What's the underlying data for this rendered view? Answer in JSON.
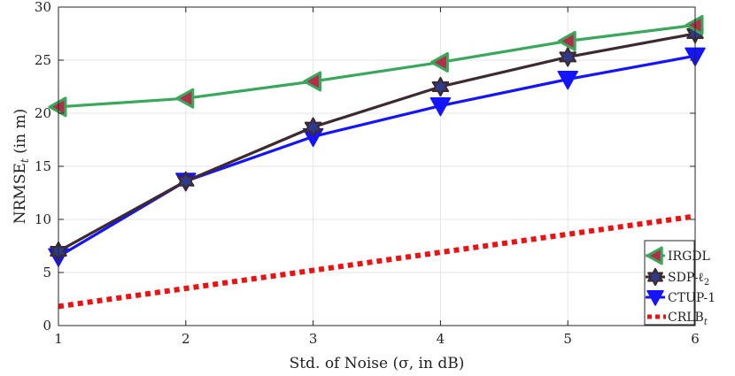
{
  "chart_data": {
    "type": "line",
    "title": "",
    "xlabel": "Std. of Noise (σ, in dB)",
    "ylabel": "NRMSE_t (in m)",
    "xlim": [
      1,
      6
    ],
    "ylim": [
      0,
      30
    ],
    "xticks": [
      1,
      2,
      3,
      4,
      5,
      6
    ],
    "yticks": [
      0,
      5,
      10,
      15,
      20,
      25,
      30
    ],
    "grid": true,
    "legend_position": "bottom-right",
    "x": [
      1,
      2,
      3,
      4,
      5,
      6
    ],
    "series": [
      {
        "name": "IRGDL",
        "label_main": "IRGDL",
        "label_sub": "",
        "marker": "triangle-left",
        "color": "#3aa85c",
        "marker_fill": "#b0304a",
        "line_style": "solid",
        "values": [
          20.6,
          21.4,
          23.0,
          24.8,
          26.8,
          28.3
        ]
      },
      {
        "name": "SDP-ℓ2",
        "label_main": "SDP-ℓ",
        "label_sub": "2",
        "marker": "hexagram",
        "color": "#3d2a2e",
        "marker_fill": "#2f3a8c",
        "line_style": "solid",
        "values": [
          7.0,
          13.6,
          18.7,
          22.5,
          25.3,
          27.5
        ]
      },
      {
        "name": "CTUP-1",
        "label_main": "CTUP-1",
        "label_sub": "",
        "marker": "triangle-down",
        "color": "#1414ff",
        "marker_fill": "#1414ff",
        "line_style": "solid",
        "values": [
          6.5,
          13.6,
          17.8,
          20.7,
          23.2,
          25.4
        ]
      },
      {
        "name": "CRLB_t",
        "label_main": "CRLB",
        "label_sub": "t",
        "marker": "none",
        "color": "#ee1111",
        "marker_fill": "#ee1111",
        "line_style": "dotted",
        "values": [
          1.8,
          3.5,
          5.2,
          6.9,
          8.6,
          10.3
        ]
      }
    ]
  }
}
